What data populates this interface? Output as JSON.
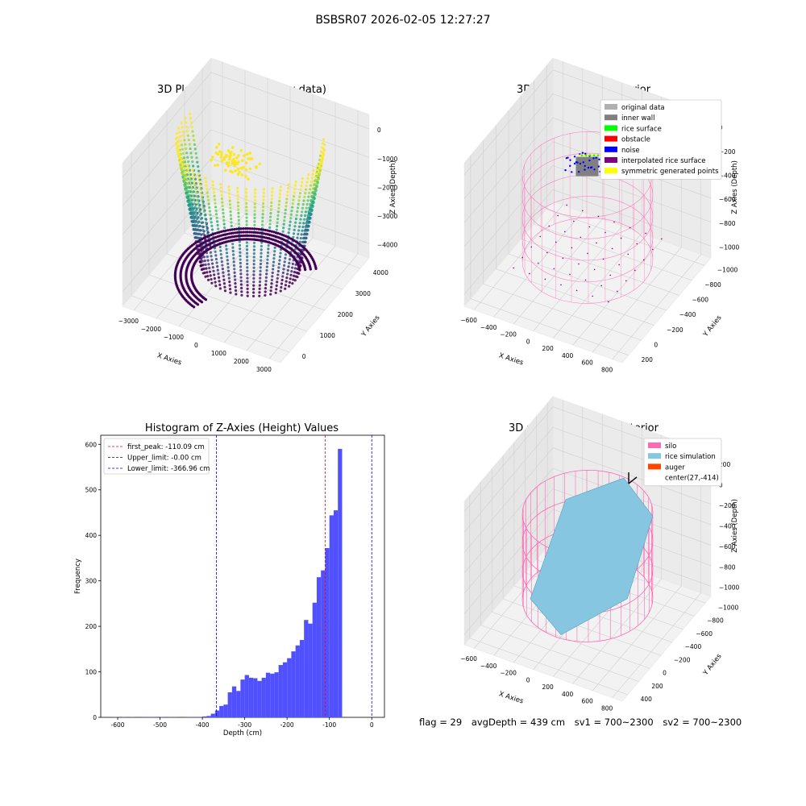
{
  "suptitle": "BSBSR07 2026-02-05 12:27:27",
  "footer": {
    "flag": "flag = 29",
    "avg": "avgDepth = 439 cm",
    "sv1": "sv1 = 700~2300",
    "sv2": "sv2 = 700~2300"
  },
  "colors": {
    "histogram": "#5050ff",
    "first_peak": "#ff0000",
    "limits": "#0000cc",
    "silo": "#ff69b4",
    "rice": "#87c6e0",
    "auger": "#ff4500"
  },
  "chart_data": [
    {
      "type": "scatter3d",
      "title": "3D Plot of Silo Interior(row data)",
      "xlabel": "X Axies",
      "ylabel": "Y Axies",
      "zlabel": "Z Axies (Depth)",
      "x_ticks": [
        "−3000",
        "−2000",
        "−1000",
        "0",
        "1000",
        "2000",
        "3000"
      ],
      "y_ticks": [
        "0",
        "1000",
        "2000",
        "3000",
        "4000"
      ],
      "z_ticks": [
        "0",
        "−1000",
        "−2000",
        "−3000",
        "−4000"
      ],
      "colormap": "viridis"
    },
    {
      "type": "scatter3d",
      "title": "3D classify of Silo Interior",
      "xlabel": "X Axies",
      "ylabel": "Y Axies",
      "zlabel": "Z Axies (Depth)",
      "x_ticks": [
        "−600",
        "−400",
        "−200",
        "0",
        "200",
        "400",
        "600",
        "800"
      ],
      "y_ticks": [
        "200",
        "0",
        "−200",
        "−400",
        "−600",
        "−800",
        "−1000"
      ],
      "z_ticks": [
        "0",
        "−200",
        "−400",
        "−600",
        "−800",
        "−1000"
      ],
      "legend": [
        {
          "label": "original data",
          "color": "#b0b0b0"
        },
        {
          "label": "inner wall",
          "color": "#808080"
        },
        {
          "label": "rice surface",
          "color": "#00ff00"
        },
        {
          "label": "obstacle",
          "color": "#ff0000"
        },
        {
          "label": "noise",
          "color": "#0000ff"
        },
        {
          "label": "interpolated rice surface",
          "color": "#800080"
        },
        {
          "label": "symmetric generated points",
          "color": "#ffff00"
        }
      ],
      "legend_position": "top-right"
    },
    {
      "type": "bar",
      "title": "Histogram of Z-Axies (Height) Values",
      "xlabel": "Depth (cm)",
      "ylabel": "Frequency",
      "xlim": [
        -640,
        30
      ],
      "ylim": [
        0,
        620
      ],
      "x_ticks": [
        -600,
        -500,
        -400,
        -300,
        -200,
        -100,
        0
      ],
      "y_ticks": [
        0,
        100,
        200,
        300,
        400,
        500,
        600
      ],
      "bin_width": 10,
      "bins": [
        {
          "x": -610,
          "v": 1
        },
        {
          "x": -590,
          "v": 1
        },
        {
          "x": -570,
          "v": 1
        },
        {
          "x": -540,
          "v": 1
        },
        {
          "x": -530,
          "v": 1
        },
        {
          "x": -520,
          "v": 1
        },
        {
          "x": -500,
          "v": 1
        },
        {
          "x": -480,
          "v": 1
        },
        {
          "x": -470,
          "v": 1
        },
        {
          "x": -440,
          "v": 1
        },
        {
          "x": -430,
          "v": 1
        },
        {
          "x": -420,
          "v": 1
        },
        {
          "x": -410,
          "v": 1
        },
        {
          "x": -400,
          "v": 2
        },
        {
          "x": -390,
          "v": 3
        },
        {
          "x": -380,
          "v": 8
        },
        {
          "x": -370,
          "v": 15
        },
        {
          "x": -360,
          "v": 25
        },
        {
          "x": -350,
          "v": 28
        },
        {
          "x": -340,
          "v": 55
        },
        {
          "x": -330,
          "v": 68
        },
        {
          "x": -320,
          "v": 58
        },
        {
          "x": -310,
          "v": 83
        },
        {
          "x": -300,
          "v": 93
        },
        {
          "x": -290,
          "v": 87
        },
        {
          "x": -280,
          "v": 86
        },
        {
          "x": -270,
          "v": 80
        },
        {
          "x": -260,
          "v": 87
        },
        {
          "x": -250,
          "v": 98
        },
        {
          "x": -240,
          "v": 96
        },
        {
          "x": -230,
          "v": 99
        },
        {
          "x": -220,
          "v": 115
        },
        {
          "x": -210,
          "v": 121
        },
        {
          "x": -200,
          "v": 130
        },
        {
          "x": -190,
          "v": 145
        },
        {
          "x": -180,
          "v": 158
        },
        {
          "x": -170,
          "v": 170
        },
        {
          "x": -160,
          "v": 214
        },
        {
          "x": -150,
          "v": 206
        },
        {
          "x": -140,
          "v": 252
        },
        {
          "x": -130,
          "v": 308
        },
        {
          "x": -120,
          "v": 323
        },
        {
          "x": -110,
          "v": 372
        },
        {
          "x": -100,
          "v": 444
        },
        {
          "x": -90,
          "v": 455
        },
        {
          "x": -80,
          "v": 590
        }
      ],
      "vlines": [
        {
          "label": "first_peak: -110.09 cm",
          "x": -110.09,
          "color": "#ff0000"
        },
        {
          "label": "Upper_limit: -0.00 cm",
          "x": 0,
          "color": "#0000cc"
        },
        {
          "label": "Lower_limit: -366.96 cm",
          "x": -366.96,
          "color": "#0000cc"
        }
      ],
      "legend_position": "top-left"
    },
    {
      "type": "surface3d",
      "title": "3D simulation of Silo Interior",
      "xlabel": "X Axies",
      "ylabel": "Y Axies",
      "zlabel": "Z Axies (Depth)",
      "x_ticks": [
        "−600",
        "−400",
        "−200",
        "0",
        "200",
        "400",
        "600",
        "800"
      ],
      "y_ticks": [
        "400",
        "200",
        "0",
        "−200",
        "−400",
        "−600",
        "−800",
        "−1000"
      ],
      "z_ticks": [
        "200",
        "0",
        "−200",
        "−400",
        "−600",
        "−800",
        "−1000"
      ],
      "legend": [
        {
          "label": "silo",
          "color": "#ff69b4"
        },
        {
          "label": "rice simulation",
          "color": "#87c6e0"
        },
        {
          "label": "auger",
          "color": "#ff4500"
        },
        {
          "label": "center(27,-414)",
          "color": ""
        }
      ],
      "legend_position": "top-right"
    }
  ]
}
